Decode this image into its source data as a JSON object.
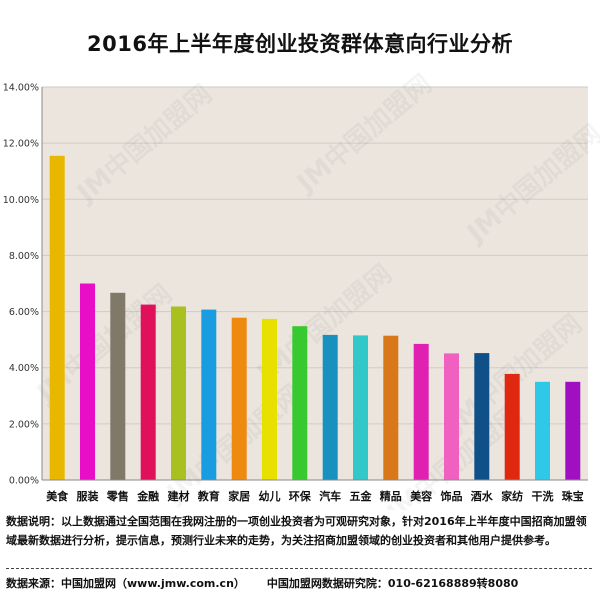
{
  "chart_data": {
    "type": "bar",
    "title": "2016年上半年度创业投资群体意向行业分析",
    "categories": [
      "美食",
      "服装",
      "零售",
      "金融",
      "建材",
      "教育",
      "家居",
      "幼儿",
      "环保",
      "汽车",
      "五金",
      "精品",
      "美容",
      "饰品",
      "酒水",
      "家纺",
      "干洗",
      "珠宝"
    ],
    "values": [
      11.55,
      7.0,
      6.67,
      6.25,
      6.18,
      6.07,
      5.78,
      5.74,
      5.48,
      5.17,
      5.15,
      5.14,
      4.85,
      4.51,
      4.52,
      3.78,
      3.5,
      3.5
    ],
    "colors": [
      "#e8b800",
      "#e80ec8",
      "#807868",
      "#e0105a",
      "#a8c020",
      "#1a9ce0",
      "#ee8a10",
      "#e8e000",
      "#38c830",
      "#1890c0",
      "#30c8c8",
      "#d87818",
      "#e020b0",
      "#f060c0",
      "#105088",
      "#e02810",
      "#30c8e8",
      "#a010c0"
    ],
    "ylim": [
      0,
      14
    ],
    "yticks": [
      "0.00%",
      "2.00%",
      "4.00%",
      "6.00%",
      "8.00%",
      "10.00%",
      "12.00%",
      "14.00%"
    ],
    "grid": true,
    "plot_background": "#ebe5de",
    "xlabel": "",
    "ylabel": ""
  },
  "note": "数据说明：以上数据通过全国范围在我网注册的一项创业投资者为可观研究对象，针对2016年上半年度中国招商加盟领域最新数据进行分析，提示信息，预测行业未来的走势，为关注招商加盟领域的创业投资者和其他用户提供参考。",
  "source": {
    "left": "数据来源：中国加盟网（www.jmw.com.cn）",
    "right": "中国加盟网数据研究院：010-62168889转8080"
  },
  "watermark_text": "JM中国加盟网"
}
